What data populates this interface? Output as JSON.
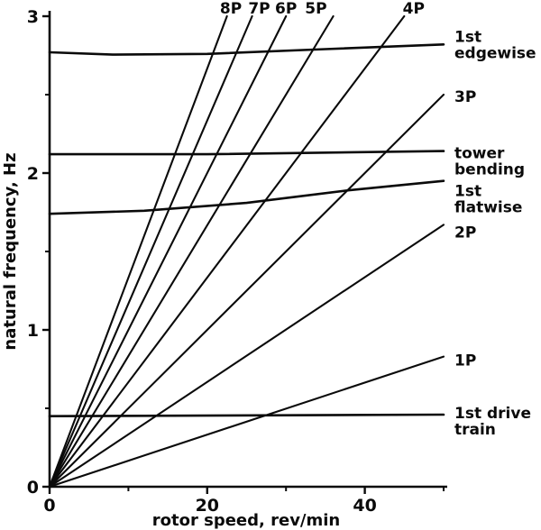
{
  "chart_data": {
    "type": "line",
    "title": "",
    "xlabel": "rotor speed, rev/min",
    "ylabel": "natural frequency, Hz",
    "xlim": [
      0,
      50
    ],
    "ylim": [
      0,
      3
    ],
    "xticks": [
      0,
      20,
      40
    ],
    "xticks_minor": [
      10,
      30,
      50
    ],
    "yticks": [
      0,
      1,
      2,
      3
    ],
    "yticks_minor": [
      0.5,
      1.5,
      2.5
    ],
    "grid": false,
    "legend_position": "none",
    "line_color": "#0a0a0a",
    "series": [
      {
        "name": "8P",
        "kind": "harmonic",
        "label": "8P",
        "label_pos": "top",
        "label_x": 23.0,
        "points": [
          [
            0,
            0
          ],
          [
            22.5,
            3
          ]
        ]
      },
      {
        "name": "7P",
        "kind": "harmonic",
        "label": "7P",
        "label_pos": "top",
        "label_x": 26.6,
        "points": [
          [
            0,
            0
          ],
          [
            25.7,
            3
          ]
        ]
      },
      {
        "name": "6P",
        "kind": "harmonic",
        "label": "6P",
        "label_pos": "top",
        "label_x": 30.0,
        "points": [
          [
            0,
            0
          ],
          [
            30,
            3
          ]
        ]
      },
      {
        "name": "5P",
        "kind": "harmonic",
        "label": "5P",
        "label_pos": "top",
        "label_x": 33.8,
        "points": [
          [
            0,
            0
          ],
          [
            36,
            3
          ]
        ]
      },
      {
        "name": "4P",
        "kind": "harmonic",
        "label": "4P",
        "label_pos": "top",
        "label_x": 46.2,
        "points": [
          [
            0,
            0
          ],
          [
            45,
            3
          ]
        ]
      },
      {
        "name": "3P",
        "kind": "harmonic",
        "label": "3P",
        "label_pos": "right",
        "label_lines": [
          "3P"
        ],
        "label_dy": 2,
        "points": [
          [
            0,
            0
          ],
          [
            50,
            2.5
          ]
        ]
      },
      {
        "name": "2P",
        "kind": "harmonic",
        "label": "2P",
        "label_pos": "right",
        "label_lines": [
          "2P"
        ],
        "label_dy": 8,
        "points": [
          [
            0,
            0
          ],
          [
            50,
            1.67
          ]
        ]
      },
      {
        "name": "1P",
        "kind": "harmonic",
        "label": "1P",
        "label_pos": "right",
        "label_lines": [
          "1P"
        ],
        "label_dy": 4,
        "points": [
          [
            0,
            0
          ],
          [
            50,
            0.83
          ]
        ]
      },
      {
        "name": "1st-edgewise",
        "kind": "mode",
        "label": "1st edgewise",
        "label_pos": "right",
        "label_lines": [
          "1st",
          "edgewise"
        ],
        "label_dy": 0,
        "points": [
          [
            0,
            2.77
          ],
          [
            8,
            2.755
          ],
          [
            20,
            2.76
          ],
          [
            35,
            2.79
          ],
          [
            50,
            2.82
          ]
        ]
      },
      {
        "name": "tower-bending",
        "kind": "mode",
        "label": "tower bending",
        "label_pos": "right",
        "label_lines": [
          "tower",
          "bending"
        ],
        "label_dy": 11,
        "points": [
          [
            0,
            2.12
          ],
          [
            20,
            2.12
          ],
          [
            50,
            2.14
          ]
        ]
      },
      {
        "name": "1st-flatwise",
        "kind": "mode",
        "label": "1st flatwise",
        "label_pos": "right",
        "label_lines": [
          "1st",
          "flatwise"
        ],
        "label_dy": 20,
        "points": [
          [
            0,
            1.74
          ],
          [
            12,
            1.76
          ],
          [
            25,
            1.81
          ],
          [
            38,
            1.89
          ],
          [
            50,
            1.95
          ]
        ]
      },
      {
        "name": "1st-drive-train",
        "kind": "mode",
        "label": "1st drive train",
        "label_pos": "right",
        "label_lines": [
          "1st drive",
          "train"
        ],
        "label_dy": 7,
        "points": [
          [
            0,
            0.45
          ],
          [
            50,
            0.46
          ]
        ]
      }
    ]
  }
}
